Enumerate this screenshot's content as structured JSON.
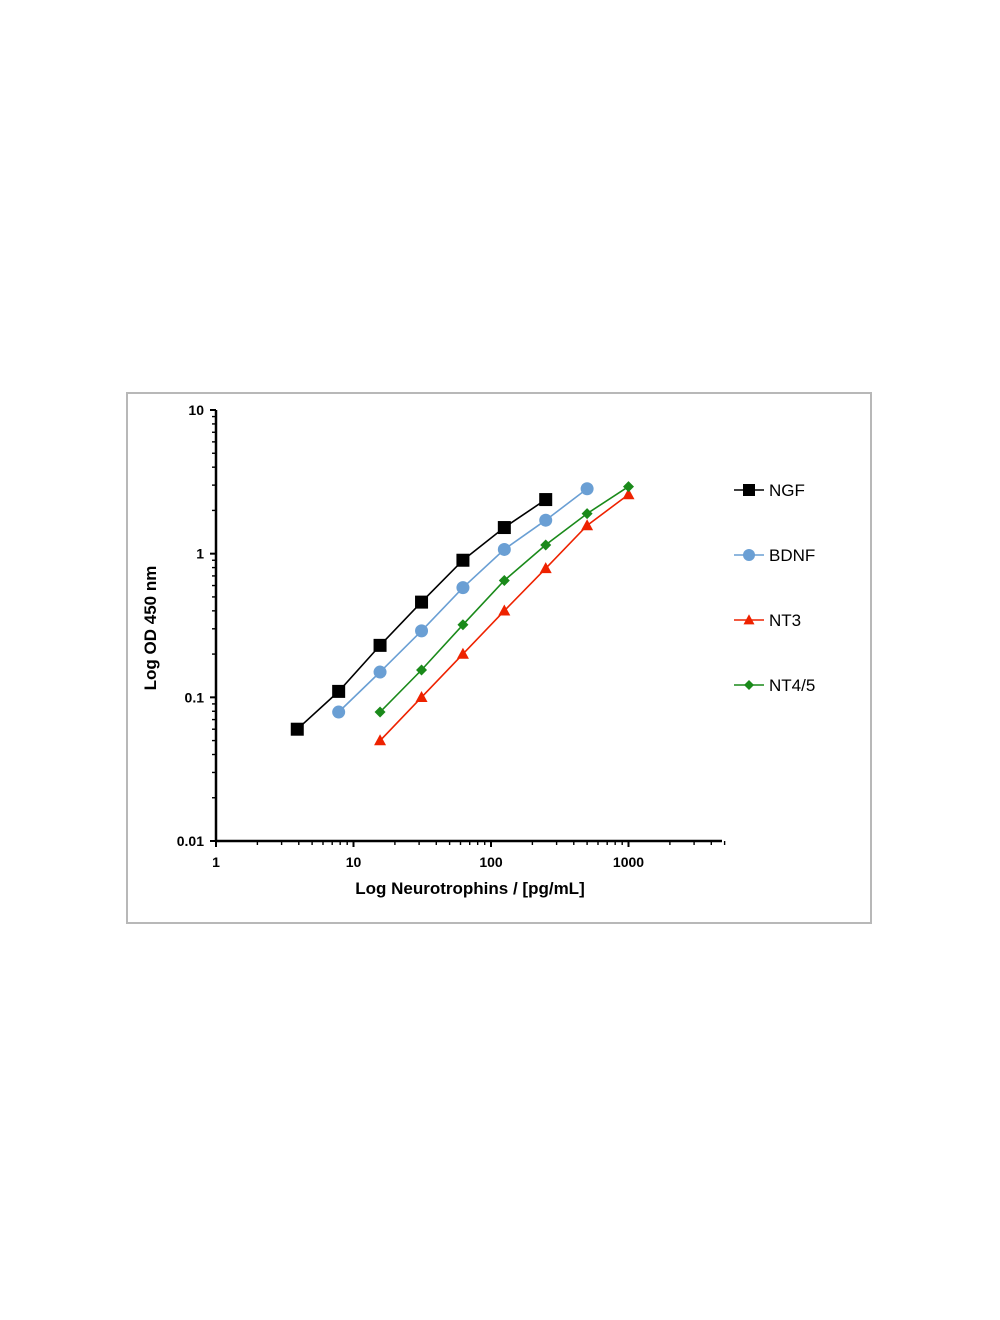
{
  "chart_data": {
    "type": "line",
    "title": "",
    "xlabel": "Log Neurotrophins / [pg/mL]",
    "ylabel": "Log OD 450 nm",
    "x_scale": "log",
    "y_scale": "log",
    "xlim": [
      1,
      5000
    ],
    "ylim": [
      0.01,
      10
    ],
    "x_ticks": [
      {
        "value": 1,
        "label": "1"
      },
      {
        "value": 10,
        "label": "10"
      },
      {
        "value": 100,
        "label": "100"
      },
      {
        "value": 1000,
        "label": "1000"
      }
    ],
    "y_ticks": [
      {
        "value": 0.01,
        "label": "0.01"
      },
      {
        "value": 0.1,
        "label": "0.1"
      },
      {
        "value": 1,
        "label": "1"
      },
      {
        "value": 10,
        "label": "10"
      }
    ],
    "grid": false,
    "legend_position": "right",
    "series": [
      {
        "name": "NGF",
        "color": "#000000",
        "marker": "square",
        "x": [
          3.9,
          7.8,
          15.6,
          31.25,
          62.5,
          125,
          250
        ],
        "y": [
          0.06,
          0.11,
          0.23,
          0.46,
          0.9,
          1.52,
          2.38
        ]
      },
      {
        "name": "BDNF",
        "color": "#6a9fd4",
        "marker": "circle",
        "x": [
          7.8,
          15.6,
          31.25,
          62.5,
          125,
          250,
          500
        ],
        "y": [
          0.079,
          0.15,
          0.29,
          0.58,
          1.07,
          1.71,
          2.83
        ]
      },
      {
        "name": "NT3",
        "color": "#ee2200",
        "marker": "triangle",
        "x": [
          15.6,
          31.25,
          62.5,
          125,
          250,
          500,
          1000
        ],
        "y": [
          0.05,
          0.1,
          0.2,
          0.4,
          0.79,
          1.57,
          2.58
        ]
      },
      {
        "name": "NT4/5",
        "color": "#1a8a1a",
        "marker": "diamond",
        "x": [
          15.6,
          31.25,
          62.5,
          125,
          250,
          500,
          1000
        ],
        "y": [
          0.079,
          0.155,
          0.32,
          0.65,
          1.15,
          1.9,
          2.93
        ]
      }
    ]
  }
}
